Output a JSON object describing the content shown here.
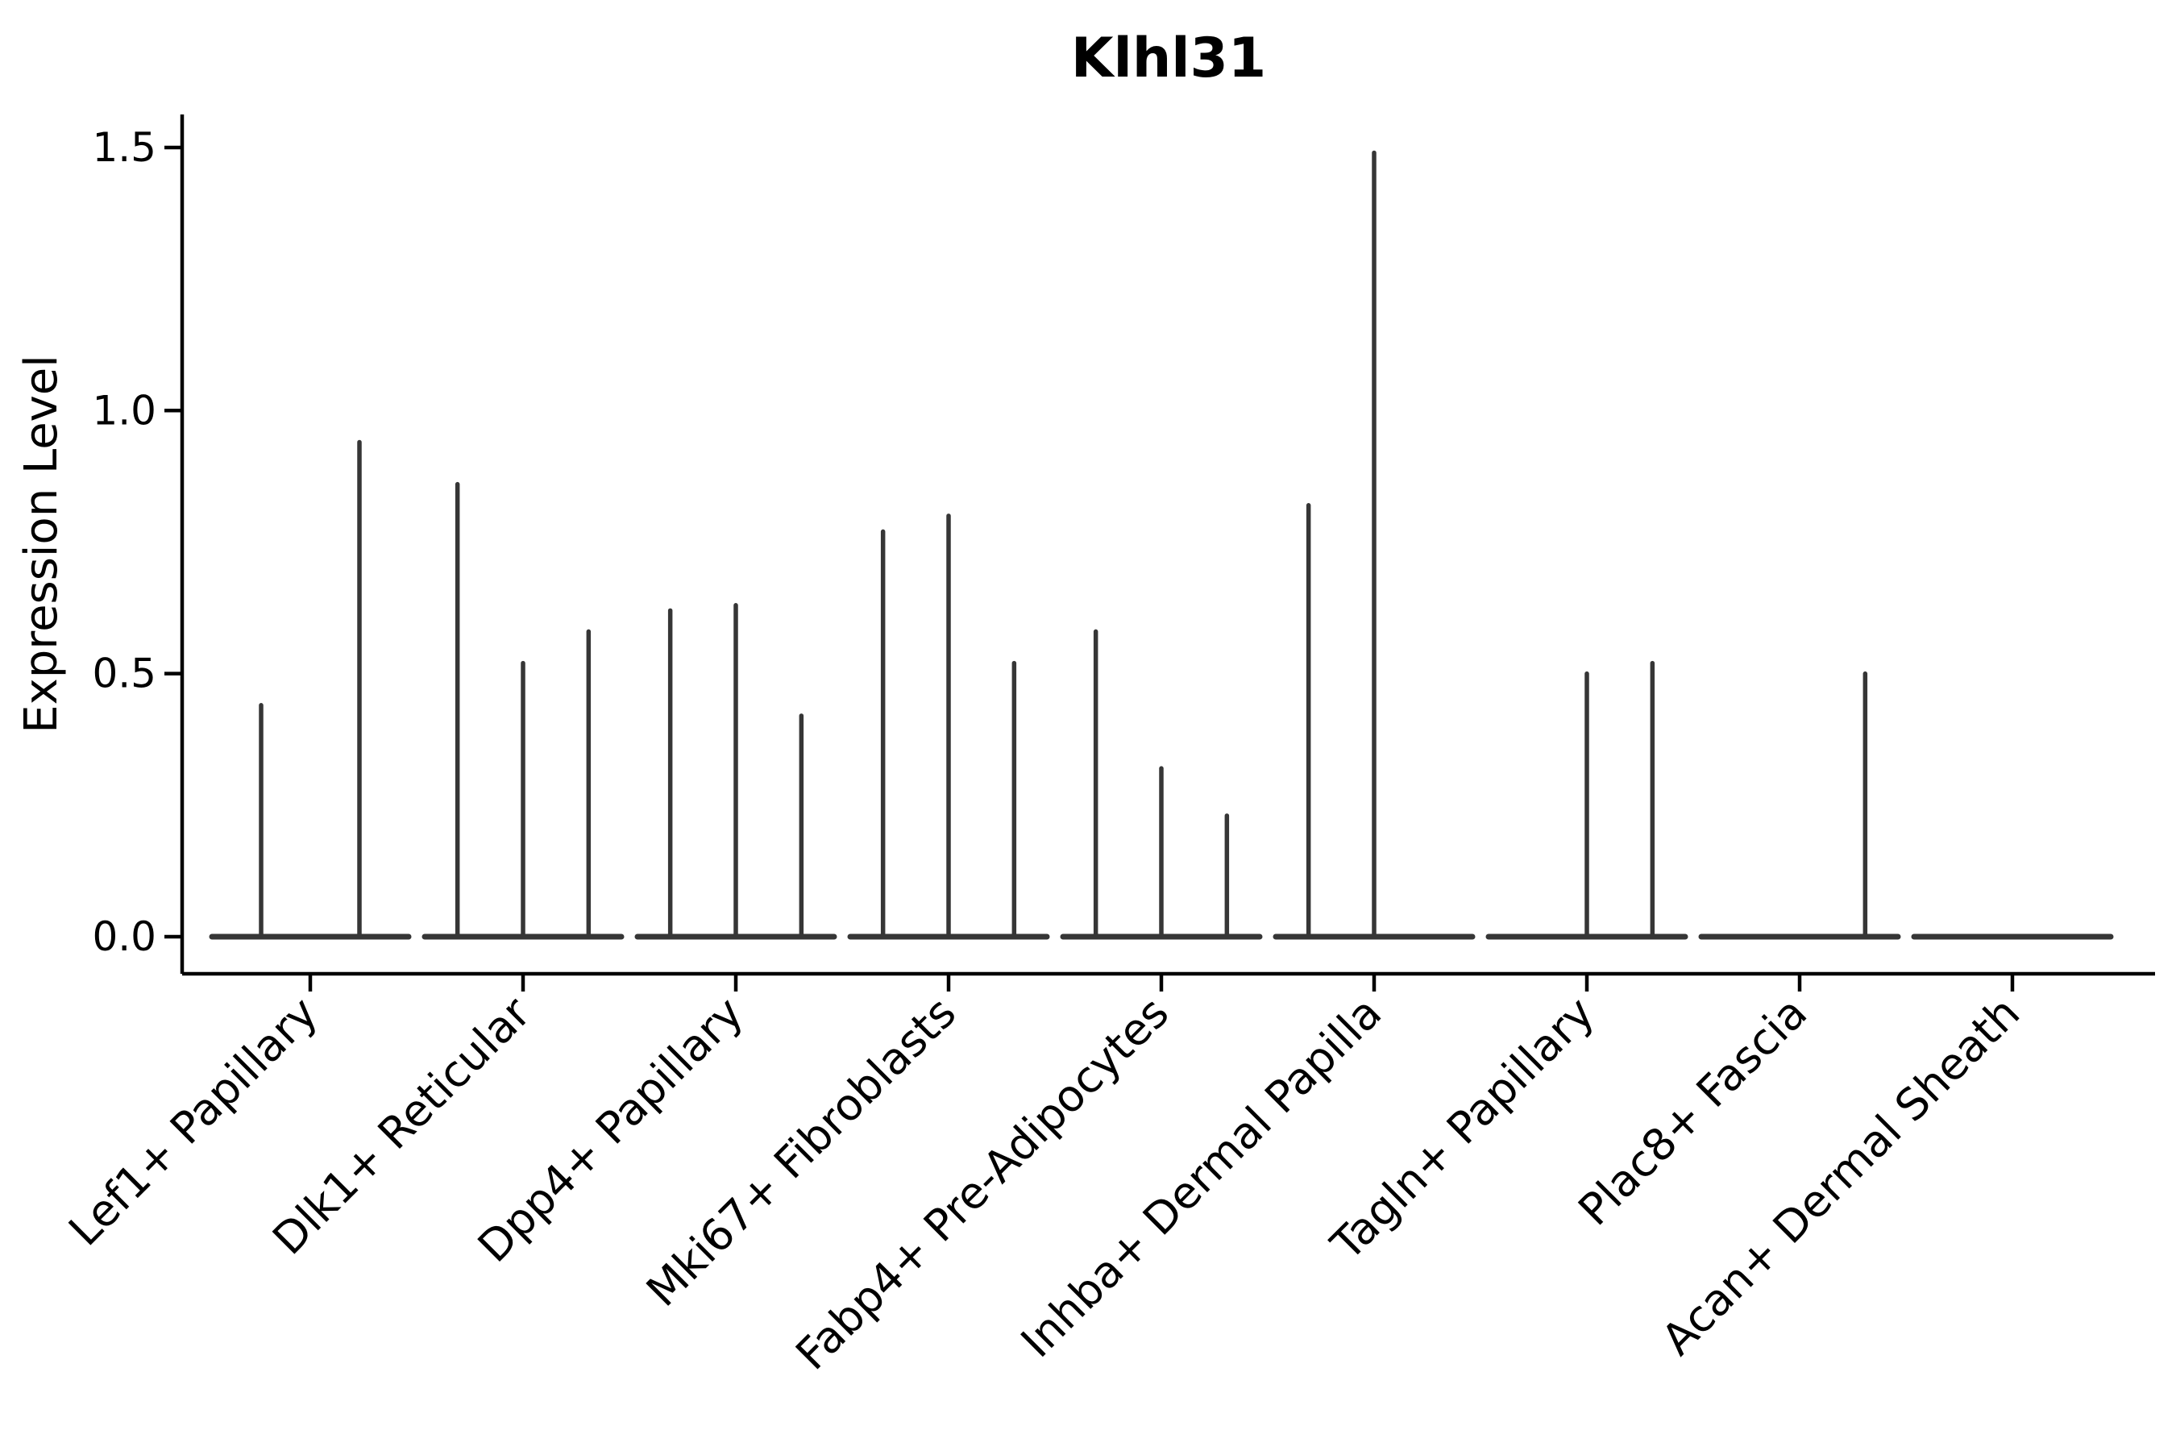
{
  "title": "Klhl31",
  "axes": {
    "ylabel": "Expression Level",
    "ytick_labels": [
      "0.0",
      "0.5",
      "1.0",
      "1.5"
    ]
  },
  "chart_data": {
    "type": "violin",
    "title": "Klhl31",
    "xlabel": "",
    "ylabel": "Expression Level",
    "ylim": [
      0,
      1.55
    ],
    "yticks": [
      0.0,
      0.5,
      1.0,
      1.5
    ],
    "ytick_labels": [
      "0.0",
      "0.5",
      "1.0",
      "1.5"
    ],
    "grid": false,
    "legend": false,
    "style_note": "Seurat-style VlnPlot: each category holds 2-3 ultra-narrow unfilled violins; each violin is a flat baseline segment at y=0 with a thin vertical spike up to its peak expression value (0 = flat baseline only, no spike)",
    "categories": [
      "Lef1+ Papillary",
      "Dlk1+ Reticular",
      "Dpp4+ Papillary",
      "Mki67+ Fibroblasts",
      "Fabp4+ Pre-Adipocytes",
      "Inhba+ Dermal Papilla",
      "Tagln+ Papillary",
      "Plac8+ Fascia",
      "Acan+ Dermal Sheath"
    ],
    "series": [
      {
        "category": "Lef1+ Papillary",
        "violin_peaks": [
          0.44,
          0.94
        ]
      },
      {
        "category": "Dlk1+ Reticular",
        "violin_peaks": [
          0.86,
          0.52,
          0.58
        ]
      },
      {
        "category": "Dpp4+ Papillary",
        "violin_peaks": [
          0.62,
          0.63,
          0.42
        ]
      },
      {
        "category": "Mki67+ Fibroblasts",
        "violin_peaks": [
          0.77,
          0.8,
          0.52
        ]
      },
      {
        "category": "Fabp4+ Pre-Adipocytes",
        "violin_peaks": [
          0.58,
          0.32,
          0.23
        ]
      },
      {
        "category": "Inhba+ Dermal Papilla",
        "violin_peaks": [
          0.82,
          1.49,
          0
        ]
      },
      {
        "category": "Tagln+ Papillary",
        "violin_peaks": [
          0,
          0.5,
          0.52
        ]
      },
      {
        "category": "Plac8+ Fascia",
        "violin_peaks": [
          0,
          0,
          0.5
        ]
      },
      {
        "category": "Acan+ Dermal Sheath",
        "violin_peaks": [
          0,
          0,
          0
        ]
      }
    ],
    "colors": {
      "violin": "#363636",
      "axis": "#000000",
      "text": "#000000"
    }
  }
}
